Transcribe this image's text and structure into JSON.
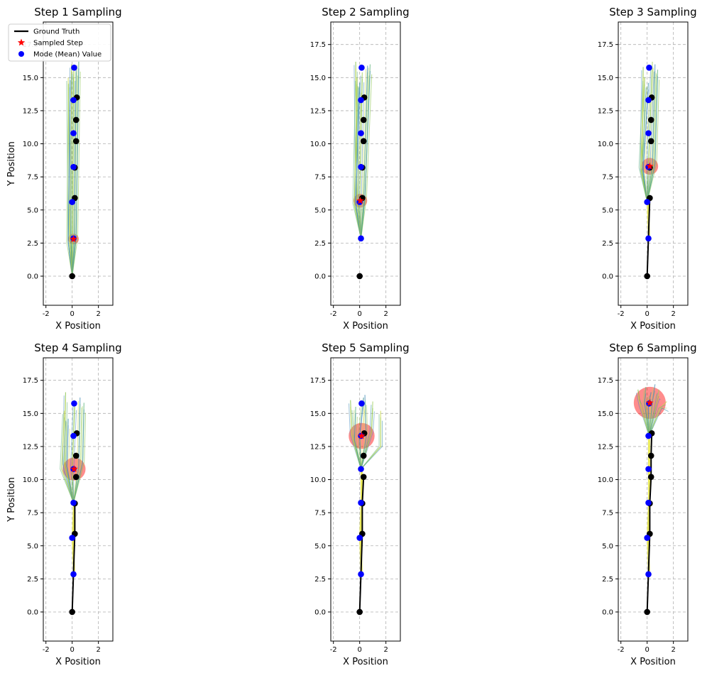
{
  "figure": {
    "xlabel": "X Position",
    "ylabel": "Y Position"
  },
  "legend": {
    "placement": "top-left of first subplot",
    "entries": [
      {
        "label": "Ground Truth",
        "marker": "line",
        "color": "#000000"
      },
      {
        "label": "Sampled Step",
        "marker": "star",
        "color": "#ff0000"
      },
      {
        "label": "Mode (Mean) Value",
        "marker": "circle",
        "color": "#0000ff"
      }
    ]
  },
  "colors": {
    "ground_truth": "#000000",
    "sampled": "#ff0000",
    "mode": "#0000ff",
    "uncertainty": "#ff0000",
    "samples": [
      "#7fbf3f",
      "#4a90b8",
      "#c8d94a",
      "#5fb37a",
      "#9ccf5c",
      "#3b8fa8"
    ]
  },
  "chart_data": [
    {
      "type": "scatter",
      "title": "Step 1 Sampling",
      "xlim": [
        -2.2,
        3.1
      ],
      "ylim": [
        -2.2,
        19.2
      ],
      "xticks": [
        "-2",
        "0",
        "2"
      ],
      "yticks": [
        "0.0",
        "2.5",
        "5.0",
        "7.5",
        "10.0",
        "12.5",
        "15.0",
        "17.5"
      ],
      "grid": true,
      "ground_truth_x": [
        0.0,
        0.2,
        0.2,
        0.3,
        0.3,
        0.35
      ],
      "ground_truth_y": [
        0.0,
        5.9,
        8.2,
        10.2,
        11.8,
        13.5
      ],
      "mode_x": [
        0.1,
        0.0,
        0.1,
        0.1,
        0.1,
        0.15
      ],
      "mode_y": [
        2.85,
        5.6,
        8.25,
        10.8,
        13.3,
        15.75
      ],
      "sampled_step": {
        "x": 0.1,
        "y": 2.8,
        "radius": 0.35
      },
      "samples_from": {
        "x": 0.0,
        "y": 0.0
      },
      "samples_lines": [
        [
          [
            0.0,
            0.0
          ],
          [
            -0.1,
            2.8
          ],
          [
            -0.05,
            16.0
          ]
        ],
        [
          [
            0.0,
            0.0
          ],
          [
            0.2,
            2.9
          ],
          [
            0.3,
            15.9
          ]
        ],
        [
          [
            0.0,
            0.0
          ],
          [
            -0.2,
            2.7
          ],
          [
            -0.3,
            15.0
          ]
        ],
        [
          [
            0.0,
            0.0
          ],
          [
            0.3,
            2.9
          ],
          [
            0.5,
            16.2
          ]
        ],
        [
          [
            0.0,
            0.0
          ],
          [
            0.0,
            2.8
          ],
          [
            0.1,
            15.5
          ]
        ],
        [
          [
            0.0,
            0.0
          ],
          [
            -0.3,
            2.6
          ],
          [
            -0.15,
            14.8
          ]
        ]
      ]
    },
    {
      "type": "scatter",
      "title": "Step 2 Sampling",
      "xlim": [
        -2.2,
        3.1
      ],
      "ylim": [
        -2.2,
        19.2
      ],
      "xticks": [
        "-2",
        "0",
        "2"
      ],
      "yticks": [
        "0.0",
        "2.5",
        "5.0",
        "7.5",
        "10.0",
        "12.5",
        "15.0",
        "17.5"
      ],
      "grid": true,
      "ground_truth_x": [
        0.0,
        0.2,
        0.2,
        0.3,
        0.3,
        0.35
      ],
      "ground_truth_y": [
        0.0,
        5.9,
        8.2,
        10.2,
        11.8,
        13.5
      ],
      "mode_x": [
        0.1,
        0.0,
        0.1,
        0.1,
        0.1,
        0.15
      ],
      "mode_y": [
        2.85,
        5.6,
        8.25,
        10.8,
        13.3,
        15.75
      ],
      "sampled_step": {
        "x": 0.05,
        "y": 5.7,
        "radius": 0.45
      },
      "samples_from": {
        "x": 0.1,
        "y": 2.85
      },
      "samples_lines": [
        [
          [
            0.1,
            2.85
          ],
          [
            -0.2,
            5.7
          ],
          [
            -0.3,
            16.2
          ]
        ],
        [
          [
            0.1,
            2.85
          ],
          [
            0.3,
            5.8
          ],
          [
            0.6,
            15.9
          ]
        ],
        [
          [
            0.1,
            2.85
          ],
          [
            -0.4,
            5.5
          ],
          [
            -0.2,
            15.0
          ]
        ],
        [
          [
            0.1,
            2.85
          ],
          [
            0.4,
            5.9
          ],
          [
            0.8,
            16.0
          ]
        ],
        [
          [
            0.1,
            2.85
          ],
          [
            0.0,
            5.6
          ],
          [
            0.2,
            15.4
          ]
        ],
        [
          [
            0.1,
            2.85
          ],
          [
            -0.3,
            5.4
          ],
          [
            0.0,
            14.6
          ]
        ]
      ]
    },
    {
      "type": "scatter",
      "title": "Step 3 Sampling",
      "xlim": [
        -2.2,
        3.1
      ],
      "ylim": [
        -2.2,
        19.2
      ],
      "xticks": [
        "-2",
        "0",
        "2"
      ],
      "yticks": [
        "0.0",
        "2.5",
        "5.0",
        "7.5",
        "10.0",
        "12.5",
        "15.0",
        "17.5"
      ],
      "grid": true,
      "ground_truth_x": [
        0.0,
        0.2,
        0.2,
        0.3,
        0.3,
        0.35
      ],
      "ground_truth_y": [
        0.0,
        5.9,
        8.2,
        10.2,
        11.8,
        13.5
      ],
      "mode_x": [
        0.1,
        0.0,
        0.1,
        0.1,
        0.1,
        0.15
      ],
      "mode_y": [
        2.85,
        5.6,
        8.25,
        10.8,
        13.3,
        15.75
      ],
      "sampled_step": {
        "x": 0.2,
        "y": 8.3,
        "radius": 0.55
      },
      "samples_from": {
        "x": 0.0,
        "y": 5.6
      },
      "samples_lines": [
        [
          [
            0.0,
            5.6
          ],
          [
            -0.4,
            8.0
          ],
          [
            -0.3,
            15.8
          ]
        ],
        [
          [
            0.0,
            5.6
          ],
          [
            0.4,
            8.4
          ],
          [
            0.6,
            16.0
          ]
        ],
        [
          [
            0.0,
            5.6
          ],
          [
            -0.5,
            8.2
          ],
          [
            -0.2,
            15.0
          ]
        ],
        [
          [
            0.0,
            5.6
          ],
          [
            0.6,
            8.5
          ],
          [
            0.8,
            15.6
          ]
        ],
        [
          [
            0.0,
            5.6
          ],
          [
            0.1,
            8.3
          ],
          [
            0.4,
            16.2
          ]
        ],
        [
          [
            0.0,
            5.6
          ],
          [
            -0.3,
            8.0
          ],
          [
            0.1,
            14.6
          ]
        ]
      ]
    },
    {
      "type": "scatter",
      "title": "Step 4 Sampling",
      "xlim": [
        -2.2,
        3.1
      ],
      "ylim": [
        -2.2,
        19.2
      ],
      "xticks": [
        "-2",
        "0",
        "2"
      ],
      "yticks": [
        "0.0",
        "2.5",
        "5.0",
        "7.5",
        "10.0",
        "12.5",
        "15.0",
        "17.5"
      ],
      "grid": true,
      "ground_truth_x": [
        0.0,
        0.2,
        0.2,
        0.3,
        0.3,
        0.35
      ],
      "ground_truth_y": [
        0.0,
        5.9,
        8.2,
        10.2,
        11.8,
        13.5
      ],
      "mode_x": [
        0.1,
        0.0,
        0.1,
        0.1,
        0.1,
        0.15
      ],
      "mode_y": [
        2.85,
        5.6,
        8.25,
        10.8,
        13.3,
        15.75
      ],
      "sampled_step": {
        "x": 0.15,
        "y": 10.8,
        "radius": 0.75
      },
      "samples_from": {
        "x": 0.1,
        "y": 8.25
      },
      "samples_lines": [
        [
          [
            0.1,
            8.25
          ],
          [
            -0.6,
            11.2
          ],
          [
            -0.5,
            16.6
          ]
        ],
        [
          [
            0.1,
            8.25
          ],
          [
            0.5,
            11.0
          ],
          [
            0.6,
            16.2
          ]
        ],
        [
          [
            0.1,
            8.25
          ],
          [
            -0.8,
            10.8
          ],
          [
            -0.6,
            15.2
          ]
        ],
        [
          [
            0.1,
            8.25
          ],
          [
            0.8,
            11.3
          ],
          [
            0.9,
            15.8
          ]
        ],
        [
          [
            0.1,
            8.25
          ],
          [
            0.0,
            10.9
          ],
          [
            0.2,
            16.0
          ]
        ],
        [
          [
            0.1,
            8.25
          ],
          [
            -0.4,
            11.0
          ],
          [
            -0.3,
            14.6
          ]
        ]
      ]
    },
    {
      "type": "scatter",
      "title": "Step 5 Sampling",
      "xlim": [
        -2.2,
        3.1
      ],
      "ylim": [
        -2.2,
        19.2
      ],
      "xticks": [
        "-2",
        "0",
        "2"
      ],
      "yticks": [
        "0.0",
        "2.5",
        "5.0",
        "7.5",
        "10.0",
        "12.5",
        "15.0",
        "17.5"
      ],
      "grid": true,
      "ground_truth_x": [
        0.0,
        0.2,
        0.2,
        0.3,
        0.3,
        0.35
      ],
      "ground_truth_y": [
        0.0,
        5.9,
        8.2,
        10.2,
        11.8,
        13.5
      ],
      "mode_x": [
        0.1,
        0.0,
        0.1,
        0.1,
        0.1,
        0.15
      ],
      "mode_y": [
        2.85,
        5.6,
        8.25,
        10.8,
        13.3,
        15.75
      ],
      "sampled_step": {
        "x": 0.15,
        "y": 13.3,
        "radius": 0.85
      },
      "samples_from": {
        "x": 0.1,
        "y": 10.8
      },
      "samples_lines": [
        [
          [
            0.1,
            10.8
          ],
          [
            -0.6,
            13.4
          ],
          [
            -0.7,
            16.0
          ]
        ],
        [
          [
            0.1,
            10.8
          ],
          [
            0.5,
            13.2
          ],
          [
            0.4,
            16.4
          ]
        ],
        [
          [
            0.1,
            10.8
          ],
          [
            1.6,
            12.5
          ],
          [
            1.6,
            15.2
          ]
        ],
        [
          [
            0.1,
            10.8
          ],
          [
            -0.4,
            13.0
          ],
          [
            -0.3,
            15.5
          ]
        ],
        [
          [
            0.1,
            10.8
          ],
          [
            0.9,
            13.6
          ],
          [
            1.0,
            15.9
          ]
        ],
        [
          [
            0.1,
            10.8
          ],
          [
            0.0,
            13.3
          ],
          [
            0.3,
            16.2
          ]
        ]
      ]
    },
    {
      "type": "scatter",
      "title": "Step 6 Sampling",
      "xlim": [
        -2.2,
        3.1
      ],
      "ylim": [
        -2.2,
        19.2
      ],
      "xticks": [
        "-2",
        "0",
        "2"
      ],
      "yticks": [
        "0.0",
        "2.5",
        "5.0",
        "7.5",
        "10.0",
        "12.5",
        "15.0",
        "17.5"
      ],
      "grid": true,
      "ground_truth_x": [
        0.0,
        0.2,
        0.2,
        0.3,
        0.3,
        0.35
      ],
      "ground_truth_y": [
        0.0,
        5.9,
        8.2,
        10.2,
        11.8,
        13.5
      ],
      "mode_x": [
        0.1,
        0.0,
        0.1,
        0.1,
        0.1,
        0.15
      ],
      "mode_y": [
        2.85,
        5.6,
        8.25,
        10.8,
        13.3,
        15.75
      ],
      "sampled_step": {
        "x": 0.2,
        "y": 15.8,
        "radius": 1.05
      },
      "samples_from": {
        "x": 0.15,
        "y": 13.3
      },
      "samples_lines": [
        [
          [
            0.15,
            13.3
          ],
          [
            -0.5,
            15.6
          ],
          [
            -0.7,
            16.8
          ]
        ],
        [
          [
            0.15,
            13.3
          ],
          [
            0.4,
            15.9
          ],
          [
            0.6,
            17.2
          ]
        ],
        [
          [
            0.15,
            13.3
          ],
          [
            1.0,
            15.4
          ],
          [
            1.5,
            15.9
          ]
        ],
        [
          [
            0.15,
            13.3
          ],
          [
            -0.2,
            15.8
          ],
          [
            -0.1,
            17.0
          ]
        ],
        [
          [
            0.15,
            13.3
          ],
          [
            0.8,
            16.1
          ],
          [
            0.9,
            16.8
          ]
        ],
        [
          [
            0.15,
            13.3
          ],
          [
            0.1,
            15.5
          ],
          [
            0.3,
            16.6
          ]
        ]
      ]
    }
  ]
}
